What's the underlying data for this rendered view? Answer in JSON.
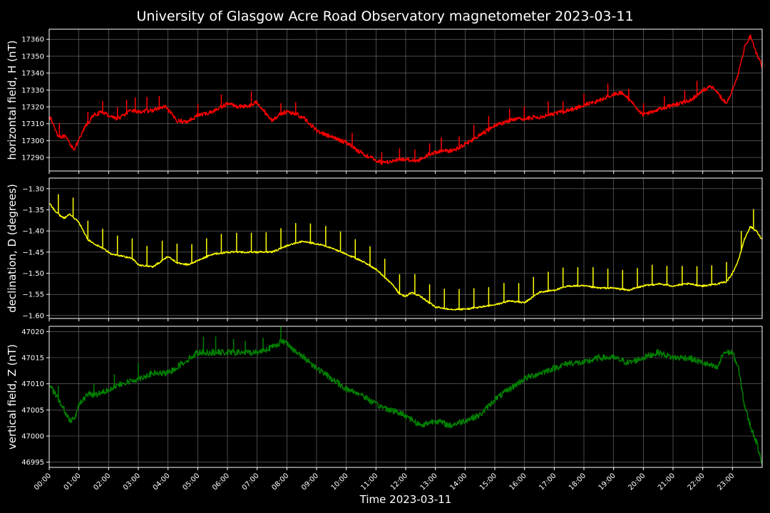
{
  "chart_data": {
    "type": "line",
    "title": "University of Glasgow Acre Road Observatory magnetometer 2023-03-11",
    "xlabel": "Time 2023-03-11",
    "xlim": [
      0,
      24
    ],
    "x_ticks": [
      "00:00",
      "01:00",
      "02:00",
      "03:00",
      "04:00",
      "05:00",
      "06:00",
      "07:00",
      "08:00",
      "09:00",
      "10:00",
      "11:00",
      "12:00",
      "13:00",
      "14:00",
      "15:00",
      "16:00",
      "17:00",
      "18:00",
      "19:00",
      "20:00",
      "21:00",
      "22:00",
      "23:00"
    ],
    "grid": true,
    "panels": [
      {
        "ylabel": "horizontal field, H (nT)",
        "color": "#ff0000",
        "ylim": [
          17282,
          17366
        ],
        "yticks": [
          17290,
          17300,
          17310,
          17320,
          17330,
          17340,
          17350,
          17360
        ],
        "ytick_labels": [
          "17290",
          "17300",
          "17310",
          "17320",
          "17330",
          "17340",
          "17350",
          "17360"
        ],
        "noise": 1.2,
        "x": [
          0,
          0.3,
          0.55,
          0.7,
          0.85,
          1.0,
          1.2,
          1.5,
          1.8,
          2.0,
          2.3,
          2.5,
          2.8,
          3.0,
          3.5,
          3.9,
          4.3,
          4.6,
          5.0,
          5.3,
          5.6,
          6.0,
          6.4,
          6.8,
          7.0,
          7.3,
          7.5,
          7.8,
          8.0,
          8.3,
          8.6,
          9.0,
          9.5,
          10.0,
          10.4,
          10.8,
          11.2,
          11.6,
          12.0,
          12.4,
          12.8,
          13.2,
          13.6,
          14.0,
          14.4,
          15.0,
          15.5,
          16.0,
          16.5,
          17.0,
          17.5,
          18.0,
          18.4,
          18.8,
          19.1,
          19.3,
          19.6,
          20.0,
          20.4,
          20.8,
          21.2,
          21.6,
          22.0,
          22.3,
          22.5,
          22.8,
          23.0,
          23.2,
          23.4,
          23.6,
          23.8,
          24.0
        ],
        "values": [
          17315,
          17303,
          17302,
          17298,
          17295,
          17300,
          17308,
          17315,
          17317,
          17315,
          17313,
          17315,
          17318,
          17317,
          17318,
          17320,
          17312,
          17311,
          17315,
          17316,
          17318,
          17322,
          17320,
          17321,
          17323,
          17316,
          17312,
          17316,
          17317,
          17316,
          17313,
          17306,
          17302,
          17299,
          17294,
          17290,
          17287,
          17288,
          17289,
          17288,
          17292,
          17294,
          17294,
          17298,
          17302,
          17309,
          17312,
          17313,
          17314,
          17316,
          17318,
          17321,
          17323,
          17326,
          17328,
          17328,
          17323,
          17315,
          17318,
          17320,
          17322,
          17324,
          17330,
          17332,
          17328,
          17322,
          17330,
          17340,
          17355,
          17362,
          17352,
          17344
        ],
        "spikes_x": [
          0.35,
          1.3,
          1.8,
          2.3,
          2.6,
          2.9,
          3.3,
          3.7,
          5.0,
          5.8,
          6.8,
          7.8,
          8.3,
          10.2,
          11.2,
          11.8,
          12.3,
          12.8,
          13.2,
          13.8,
          14.3,
          14.8,
          15.5,
          16.0,
          16.8,
          17.3,
          18.0,
          18.8,
          19.5,
          20.0,
          20.7,
          21.4,
          21.8
        ],
        "spike_size": 7
      },
      {
        "ylabel": "declination, D (degrees)",
        "color": "#ffff00",
        "ylim": [
          -1.607,
          -1.275
        ],
        "yticks": [
          -1.6,
          -1.55,
          -1.5,
          -1.45,
          -1.4,
          -1.35,
          -1.3
        ],
        "ytick_labels": [
          "−1.60",
          "−1.55",
          "−1.50",
          "−1.45",
          "−1.40",
          "−1.35",
          "−1.30"
        ],
        "noise": 0.002,
        "x": [
          0,
          0.3,
          0.5,
          0.7,
          1.0,
          1.3,
          1.5,
          1.8,
          2.1,
          2.5,
          2.8,
          3.0,
          3.5,
          4.0,
          4.3,
          4.7,
          5.0,
          5.5,
          6.0,
          6.5,
          7.0,
          7.3,
          7.5,
          8.0,
          8.5,
          9.0,
          9.5,
          10.0,
          10.5,
          11.0,
          11.3,
          11.6,
          11.8,
          12.0,
          12.2,
          12.5,
          13.0,
          13.5,
          14.0,
          14.5,
          15.0,
          15.5,
          16.0,
          16.5,
          17.0,
          17.5,
          18.0,
          18.5,
          19.0,
          19.5,
          20.0,
          20.5,
          21.0,
          21.5,
          22.0,
          22.5,
          22.8,
          23.0,
          23.2,
          23.4,
          23.6,
          23.8,
          24.0
        ],
        "values": [
          -1.335,
          -1.36,
          -1.37,
          -1.36,
          -1.38,
          -1.42,
          -1.43,
          -1.44,
          -1.455,
          -1.46,
          -1.465,
          -1.48,
          -1.485,
          -1.46,
          -1.475,
          -1.48,
          -1.47,
          -1.455,
          -1.45,
          -1.45,
          -1.45,
          -1.45,
          -1.45,
          -1.435,
          -1.425,
          -1.43,
          -1.44,
          -1.455,
          -1.47,
          -1.49,
          -1.51,
          -1.53,
          -1.55,
          -1.555,
          -1.545,
          -1.555,
          -1.58,
          -1.585,
          -1.585,
          -1.58,
          -1.575,
          -1.565,
          -1.57,
          -1.545,
          -1.54,
          -1.53,
          -1.53,
          -1.535,
          -1.535,
          -1.54,
          -1.53,
          -1.525,
          -1.53,
          -1.525,
          -1.53,
          -1.525,
          -1.52,
          -1.5,
          -1.47,
          -1.42,
          -1.39,
          -1.4,
          -1.42
        ],
        "spikes_x": [
          0.3,
          0.8,
          1.3,
          1.8,
          2.3,
          2.8,
          3.3,
          3.8,
          4.3,
          4.8,
          5.3,
          5.8,
          6.3,
          6.8,
          7.3,
          7.8,
          8.3,
          8.8,
          9.3,
          9.8,
          10.3,
          10.8,
          11.3,
          11.8,
          12.3,
          12.8,
          13.3,
          13.8,
          14.3,
          14.8,
          15.3,
          15.8,
          16.3,
          16.8,
          17.3,
          17.8,
          18.3,
          18.8,
          19.3,
          19.8,
          20.3,
          20.8,
          21.3,
          21.8,
          22.3,
          22.8,
          23.3,
          23.7
        ],
        "spike_size": 0.045
      },
      {
        "ylabel": "vertical field, Z (nT)",
        "color": "#008000",
        "ylim": [
          46994,
          47021
        ],
        "yticks": [
          46995,
          47000,
          47005,
          47010,
          47015,
          47020
        ],
        "ytick_labels": [
          "46995",
          "47000",
          "47005",
          "47010",
          "47015",
          "47020"
        ],
        "noise": 0.6,
        "x": [
          0,
          0.3,
          0.5,
          0.7,
          0.9,
          1.0,
          1.3,
          1.6,
          2.0,
          2.5,
          3.0,
          3.5,
          4.0,
          4.5,
          5.0,
          5.5,
          6.0,
          6.5,
          7.0,
          7.5,
          7.8,
          8.0,
          8.3,
          8.6,
          9.0,
          9.5,
          10.0,
          10.5,
          11.0,
          11.5,
          12.0,
          12.5,
          13.0,
          13.5,
          14.0,
          14.5,
          15.0,
          15.5,
          16.0,
          16.5,
          17.0,
          17.5,
          18.0,
          18.5,
          19.0,
          19.5,
          20.0,
          20.5,
          21.0,
          21.5,
          22.0,
          22.5,
          22.7,
          23.0,
          23.2,
          23.4,
          23.6,
          23.8,
          24.0
        ],
        "values": [
          47010,
          47007,
          47005,
          47003,
          47004,
          47006,
          47008,
          47008,
          47009,
          47010,
          47011,
          47012,
          47012,
          47014,
          47016,
          47016,
          47016,
          47016,
          47016,
          47017,
          47018,
          47018,
          47016,
          47015,
          47013,
          47011,
          47009,
          47008,
          47006,
          47005,
          47004,
          47002,
          47003,
          47002,
          47003,
          47004,
          47007,
          47009,
          47011,
          47012,
          47013,
          47014,
          47014,
          47015,
          47015,
          47014,
          47015,
          47016,
          47015,
          47015,
          47014,
          47013,
          47016,
          47016,
          47013,
          47006,
          47002,
          46999,
          46995
        ],
        "spikes_x": [
          0.3,
          1.5,
          2.2,
          3.0,
          5.2,
          5.6,
          6.2,
          6.6,
          7.2,
          7.8
        ],
        "spike_size": 2.5
      }
    ]
  }
}
